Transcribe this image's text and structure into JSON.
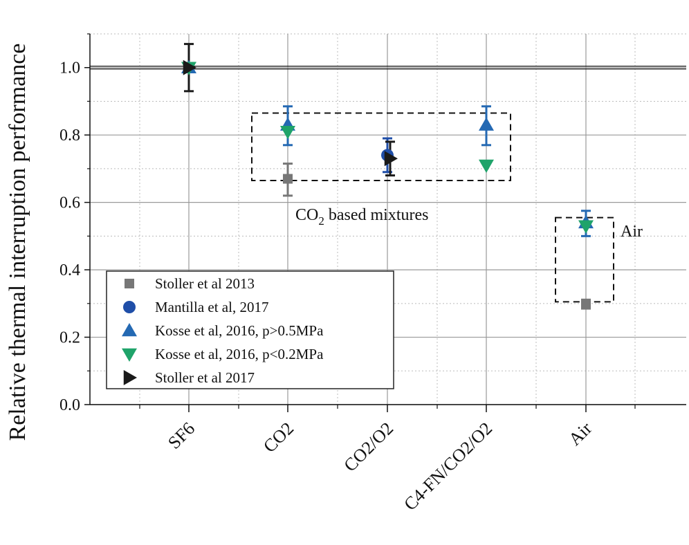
{
  "chart_data": {
    "type": "scatter",
    "ylabel": "Relative thermal interruption performance",
    "xlabel": "",
    "categories": [
      "SF6",
      "CO2",
      "CO2/O2",
      "C4-FN/CO2/O2",
      "Air"
    ],
    "ylim": [
      0.0,
      1.1
    ],
    "yticks": [
      "0.0",
      "0.2",
      "0.4",
      "0.6",
      "0.8",
      "1.0"
    ],
    "grid": true,
    "legend_position": "bottom-left",
    "reference_line": 1.0,
    "series": [
      {
        "name": "Stoller et al 2013",
        "marker": "square",
        "color": "#777777",
        "points": [
          {
            "category": "CO2",
            "y": 0.67,
            "err_low": 0.62,
            "err_high": 0.715
          },
          {
            "category": "Air",
            "y": 0.3,
            "err_low": 0.285,
            "err_high": 0.31
          }
        ]
      },
      {
        "name": "Mantilla et al, 2017",
        "marker": "circle",
        "color": "#1f4ea8",
        "points": [
          {
            "category": "CO2/O2",
            "y": 0.74,
            "err_low": 0.69,
            "err_high": 0.79
          }
        ]
      },
      {
        "name": "Kosse et al, 2016, p>0.5MPa",
        "marker": "triangle-up",
        "color": "#2469b3",
        "points": [
          {
            "category": "SF6",
            "y": 1.0
          },
          {
            "category": "CO2",
            "y": 0.83,
            "err_low": 0.77,
            "err_high": 0.885
          },
          {
            "category": "C4-FN/CO2/O2",
            "y": 0.83,
            "err_low": 0.77,
            "err_high": 0.885
          },
          {
            "category": "Air",
            "y": 0.54,
            "err_low": 0.5,
            "err_high": 0.575
          }
        ]
      },
      {
        "name": "Kosse et al, 2016, p<0.2MPa",
        "marker": "triangle-down",
        "color": "#1fa36a",
        "points": [
          {
            "category": "SF6",
            "y": 1.0
          },
          {
            "category": "CO2",
            "y": 0.81
          },
          {
            "category": "C4-FN/CO2/O2",
            "y": 0.71
          },
          {
            "category": "Air",
            "y": 0.53
          }
        ]
      },
      {
        "name": "Stoller et al 2017",
        "marker": "triangle-right",
        "color": "#1a1a1a",
        "points": [
          {
            "category": "SF6",
            "y": 1.0,
            "err_low": 0.93,
            "err_high": 1.07
          },
          {
            "category": "CO2/O2",
            "y": 0.73,
            "err_low": 0.68,
            "err_high": 0.78
          }
        ]
      }
    ],
    "annotations": [
      {
        "text_main": "CO",
        "text_sub": "2",
        "text_rest": " based mixtures",
        "box_y": [
          0.665,
          0.865
        ]
      },
      {
        "text_main": "Air",
        "box_y": [
          0.305,
          0.555
        ]
      }
    ]
  }
}
